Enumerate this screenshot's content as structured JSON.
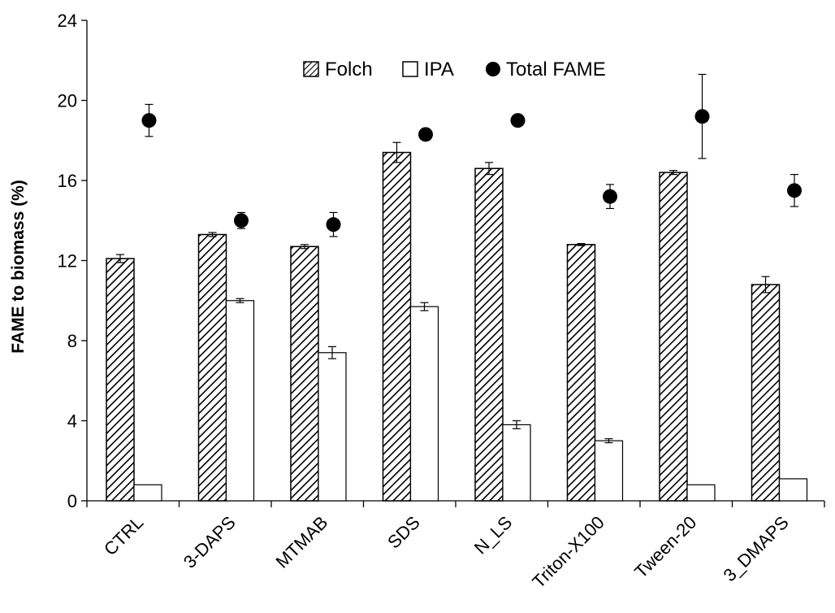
{
  "chart_data": {
    "type": "bar",
    "title": "",
    "xlabel": "",
    "ylabel": "FAME to biomass (%)",
    "ylim": [
      0,
      24
    ],
    "yticks": [
      0,
      4,
      8,
      12,
      16,
      20,
      24
    ],
    "grid": false,
    "legend_position": "top-center",
    "categories": [
      "CTRL",
      "3-DAPS",
      "MTMAB",
      "SDS",
      "N_LS",
      "Triton-X100",
      "Tween-20",
      "3_DMAPS"
    ],
    "series": [
      {
        "name": "Folch",
        "kind": "bar",
        "pattern": "diagonal-hatch",
        "values": [
          12.1,
          13.3,
          12.7,
          17.4,
          16.6,
          12.8,
          16.4,
          10.8
        ],
        "errors": [
          0.2,
          0.1,
          0.1,
          0.5,
          0.3,
          0.05,
          0.1,
          0.4
        ]
      },
      {
        "name": "IPA",
        "kind": "bar",
        "pattern": "white",
        "values": [
          0.8,
          10.0,
          7.4,
          9.7,
          3.8,
          3.0,
          0.8,
          1.1
        ],
        "errors": [
          0,
          0.1,
          0.3,
          0.2,
          0.2,
          0.1,
          0,
          0
        ]
      },
      {
        "name": "Total FAME",
        "kind": "scatter",
        "marker": "filled-circle",
        "values": [
          19.0,
          14.0,
          13.8,
          18.3,
          19.0,
          15.2,
          19.2,
          15.5
        ],
        "errors": [
          0.8,
          0.4,
          0.6,
          0,
          0,
          0.6,
          2.1,
          0.8
        ]
      }
    ]
  },
  "colors": {
    "axis": "#000000",
    "bar_fill_ipa": "#ffffff",
    "marker": "#000000"
  }
}
